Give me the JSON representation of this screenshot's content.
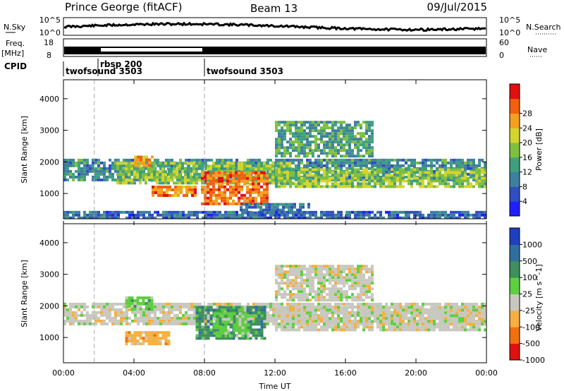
{
  "header": {
    "station": "Prince George (fitACF)",
    "beam": "Beam 13",
    "date": "09/Jul/2015"
  },
  "panels": {
    "nsky": {
      "label": "N.Sky",
      "ticks": [
        "10^5",
        "10^0"
      ],
      "right_label": "N.Search",
      "right_ticks": [
        "10^5",
        "10^0"
      ]
    },
    "freq": {
      "label_top": "Freq.",
      "label_unit": "[MHz]",
      "ticks": [
        "18",
        "8"
      ],
      "right_label": "Nave",
      "right_ticks": [
        "60",
        "0"
      ]
    },
    "cpid": {
      "label": "CPID",
      "segments": [
        {
          "start_hour": 0.0,
          "text": "twofsound 3503"
        },
        {
          "start_hour": 1.75,
          "text": "rbsp 200"
        },
        {
          "start_hour": 8.0,
          "text": "twofsound 3503"
        }
      ]
    }
  },
  "chart_data": [
    {
      "type": "heatmap",
      "name": "Power",
      "ylabel": "Slant Range [km]",
      "ylim": [
        200,
        4600
      ],
      "yticks": [
        1000,
        2000,
        3000,
        4000
      ],
      "xlim": [
        0,
        24
      ],
      "colorbar": {
        "label": "Power [dB]",
        "min": 0,
        "max": 32,
        "ticks": [
          "4",
          "8",
          "12",
          "16",
          "20",
          "24",
          "28"
        ],
        "colors": [
          "#1f1fff",
          "#2f4fc0",
          "#3f7f9f",
          "#3f9f7f",
          "#7fbf3f",
          "#d4d430",
          "#f4a020",
          "#f06010",
          "#e01010"
        ]
      },
      "regions": [
        {
          "t0": 0.0,
          "t1": 24.0,
          "r0": 1400,
          "r1": 2100,
          "v": 10
        },
        {
          "t0": 3.0,
          "t1": 13.0,
          "r0": 1300,
          "r1": 2000,
          "v": 16
        },
        {
          "t0": 4.0,
          "t1": 5.0,
          "r0": 1900,
          "r1": 2200,
          "v": 24
        },
        {
          "t0": 5.0,
          "t1": 7.5,
          "r0": 950,
          "r1": 1250,
          "v": 26
        },
        {
          "t0": 7.8,
          "t1": 11.5,
          "r0": 700,
          "r1": 1700,
          "v": 27
        },
        {
          "t0": 10.0,
          "t1": 14.0,
          "r0": 400,
          "r1": 700,
          "v": 8
        },
        {
          "t0": 12.0,
          "t1": 17.5,
          "r0": 2200,
          "r1": 3300,
          "v": 12
        },
        {
          "t0": 12.0,
          "t1": 24.0,
          "r0": 1200,
          "r1": 1800,
          "v": 17
        },
        {
          "t0": 0.0,
          "t1": 24.0,
          "r0": 250,
          "r1": 450,
          "v": 6
        }
      ]
    },
    {
      "type": "heatmap",
      "name": "Velocity",
      "ylabel": "Slant Range [km]",
      "ylim": [
        200,
        4600
      ],
      "yticks": [
        1000,
        2000,
        3000,
        4000
      ],
      "xlim": [
        0,
        24
      ],
      "xticks": [
        "00:00",
        "04:00",
        "08:00",
        "12:00",
        "16:00",
        "20:00",
        "00:00"
      ],
      "xlabel": "Time UT",
      "colorbar": {
        "label": "Velocity [m s^-1]",
        "ticks": [
          "1000",
          "500",
          "100",
          "25",
          "-25",
          "-100",
          "-500",
          "-1000"
        ],
        "colors": [
          "#1f3fbf",
          "#2f6f9f",
          "#3f8f5f",
          "#5fcf3f",
          "#c8c8c0",
          "#f4b040",
          "#f07010",
          "#e01010"
        ]
      },
      "regions": [
        {
          "t0": 0.0,
          "t1": 24.0,
          "r0": 1400,
          "r1": 2100,
          "v": 4
        },
        {
          "t0": 12.0,
          "t1": 24.0,
          "r0": 1200,
          "r1": 2000,
          "v": 4
        },
        {
          "t0": 3.5,
          "t1": 5.0,
          "r0": 1900,
          "r1": 2300,
          "v": 3
        },
        {
          "t0": 3.5,
          "t1": 6.0,
          "r0": 800,
          "r1": 1200,
          "v": 5
        },
        {
          "t0": 7.5,
          "t1": 11.5,
          "r0": 1000,
          "r1": 2000,
          "v": 2
        },
        {
          "t0": 8.5,
          "t1": 10.5,
          "r0": 1000,
          "r1": 1800,
          "v": 3
        },
        {
          "t0": 12.0,
          "t1": 17.5,
          "r0": 2200,
          "r1": 3300,
          "v": 4
        }
      ]
    }
  ]
}
